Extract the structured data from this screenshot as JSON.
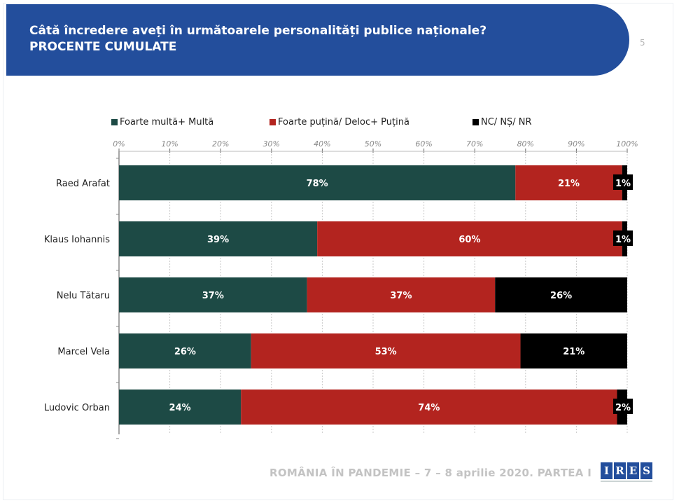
{
  "header": {
    "title_line1": "Câtă încredere aveți în următoarele personalități publice naționale?",
    "title_line2": "PROCENTE CUMULATE",
    "page_number": "5"
  },
  "footer": {
    "text": "ROMÂNIA ÎN PANDEMIE – 7 – 8 aprilie 2020. PARTEA I",
    "logo_letters": [
      "I",
      "R",
      "E",
      "S"
    ]
  },
  "colors": {
    "header_bg": "#234e9c",
    "series1": "#1d4a45",
    "series2": "#b3241f",
    "series3": "#000000"
  },
  "chart_data": {
    "type": "bar",
    "orientation": "horizontal",
    "stacked": true,
    "title": "Câtă încredere aveți în următoarele personalități publice naționale?",
    "subtitle": "PROCENTE CUMULATE",
    "xlabel": "",
    "ylabel": "",
    "xlim": [
      0,
      100
    ],
    "x_ticks": [
      "0%",
      "10%",
      "20%",
      "30%",
      "40%",
      "50%",
      "60%",
      "70%",
      "80%",
      "90%",
      "100%"
    ],
    "grid": true,
    "legend_position": "top",
    "categories": [
      "Raed Arafat",
      "Klaus Iohannis",
      "Nelu Tătaru",
      "Marcel Vela",
      "Ludovic Orban"
    ],
    "series": [
      {
        "name": "Foarte multă+ Multă",
        "color": "#1d4a45",
        "values": [
          78,
          39,
          37,
          26,
          24
        ]
      },
      {
        "name": "Foarte puțină/ Deloc+ Puțină",
        "color": "#b3241f",
        "values": [
          21,
          60,
          37,
          53,
          74
        ]
      },
      {
        "name": "NC/ NȘ/ NR",
        "color": "#000000",
        "values": [
          1,
          1,
          26,
          21,
          2
        ]
      }
    ]
  }
}
